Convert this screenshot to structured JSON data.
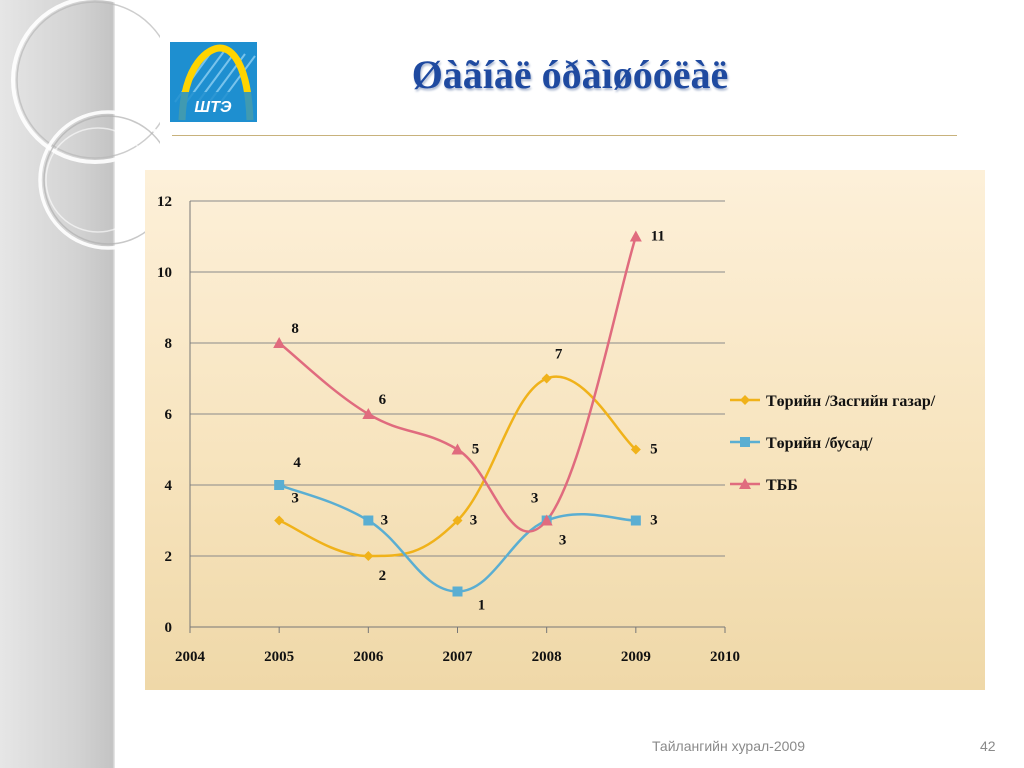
{
  "slide": {
    "title": "Øàãíàë óðàìøóóëàë",
    "logo_text": "ШТЭ",
    "footer": "Тайлангийн хурал-2009",
    "page_number": "42"
  },
  "colors": {
    "title": "#1f4aa0",
    "series": [
      "#f0b21a",
      "#5aaed2",
      "#e06b7e"
    ]
  },
  "chart_data": {
    "type": "line",
    "title": "",
    "xlabel": "",
    "ylabel": "",
    "xlim": [
      2004,
      2010
    ],
    "ylim": [
      0,
      12
    ],
    "x_ticks": [
      2004,
      2005,
      2006,
      2007,
      2008,
      2009,
      2010
    ],
    "y_ticks": [
      0,
      2,
      4,
      6,
      8,
      10,
      12
    ],
    "grid": "horizontal",
    "legend_position": "right",
    "smooth": true,
    "series": [
      {
        "name": "Төрийн /Засгийн газар/",
        "marker": "diamond",
        "x": [
          2005,
          2006,
          2007,
          2008,
          2009
        ],
        "values": [
          3,
          2,
          3,
          7,
          5
        ]
      },
      {
        "name": "Төрийн /бусад/",
        "marker": "square",
        "x": [
          2005,
          2006,
          2007,
          2008,
          2009
        ],
        "values": [
          4,
          3,
          1,
          3,
          3
        ]
      },
      {
        "name": "ТББ",
        "marker": "triangle",
        "x": [
          2005,
          2006,
          2007,
          2008,
          2009
        ],
        "values": [
          8,
          6,
          5,
          3,
          11
        ]
      }
    ]
  }
}
